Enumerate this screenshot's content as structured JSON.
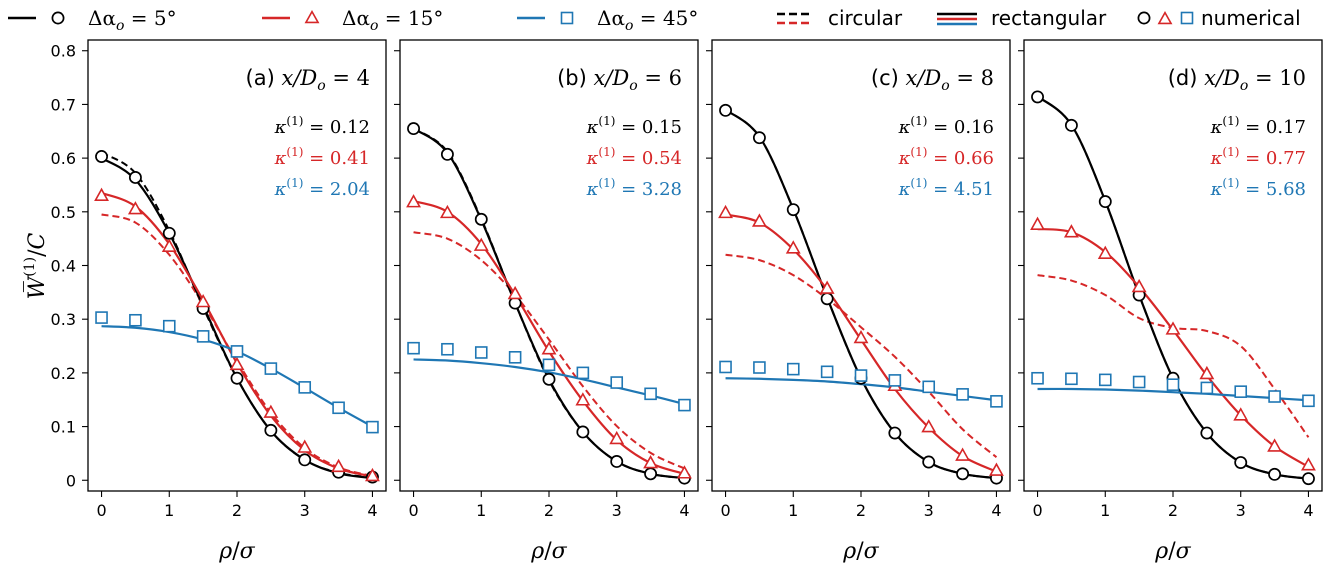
{
  "chart_data": {
    "type": "line",
    "ylabel": "W̅⁽¹⁾/C",
    "xlabel": "ρ/σ",
    "xlim": [
      -0.2,
      4.2
    ],
    "ylim": [
      -0.02,
      0.82
    ],
    "xticks": [
      "0",
      "1",
      "2",
      "3",
      "4"
    ],
    "yticks": [
      "0",
      "0.1",
      "0.2",
      "0.3",
      "0.4",
      "0.5",
      "0.6",
      "0.7",
      "0.8"
    ],
    "grid": false,
    "legend_position": "top",
    "legend": {
      "series": [
        {
          "label": "Δα",
          "sub": "o",
          "value": "= 5°",
          "color": "#000000",
          "marker": "circle"
        },
        {
          "label": "Δα",
          "sub": "o",
          "value": "= 15°",
          "color": "#d62728",
          "marker": "triangle"
        },
        {
          "label": "Δα",
          "sub": "o",
          "value": "= 45°",
          "color": "#1f77b4",
          "marker": "square"
        }
      ],
      "styles": [
        "circular",
        "rectangular",
        "numerical"
      ]
    },
    "colors": {
      "alpha5": "#000000",
      "alpha15": "#d62728",
      "alpha45": "#1f77b4"
    },
    "panels": [
      {
        "letter": "(a)",
        "title_pre": "x/D",
        "title_sub": "o",
        "title_val": "= 4",
        "kappa": [
          "= 0.12",
          "= 0.41",
          "= 2.04"
        ],
        "numerical": [
          [
            0.603,
            0.564,
            0.46,
            0.32,
            0.19,
            0.093,
            0.038,
            0.015,
            0.006
          ],
          [
            0.53,
            0.505,
            0.435,
            0.332,
            0.215,
            0.126,
            0.061,
            0.025,
            0.008
          ],
          [
            0.303,
            0.298,
            0.287,
            0.268,
            0.24,
            0.208,
            0.173,
            0.135,
            0.099
          ]
        ],
        "rectangular": [
          [
            0.6,
            0.56,
            0.46,
            0.325,
            0.19,
            0.092,
            0.038,
            0.013,
            0.004
          ],
          [
            0.535,
            0.51,
            0.44,
            0.335,
            0.218,
            0.12,
            0.056,
            0.022,
            0.007
          ],
          [
            0.287,
            0.284,
            0.276,
            0.262,
            0.24,
            0.208,
            0.172,
            0.135,
            0.1
          ]
        ],
        "circular": [
          [
            0.61,
            0.572,
            0.465,
            0.322,
            0.19,
            0.092,
            0.038,
            0.014,
            0.005
          ],
          [
            0.495,
            0.48,
            0.42,
            0.328,
            0.222,
            0.126,
            0.06,
            0.024,
            0.008
          ]
        ]
      },
      {
        "letter": "(b)",
        "title_pre": "x/D",
        "title_sub": "o",
        "title_val": "= 6",
        "kappa": [
          "= 0.15",
          "= 0.54",
          "= 3.28"
        ],
        "numerical": [
          [
            0.655,
            0.607,
            0.486,
            0.33,
            0.188,
            0.09,
            0.035,
            0.012,
            0.004
          ],
          [
            0.518,
            0.498,
            0.437,
            0.347,
            0.244,
            0.149,
            0.077,
            0.032,
            0.013
          ],
          [
            0.246,
            0.244,
            0.238,
            0.229,
            0.215,
            0.2,
            0.182,
            0.161,
            0.14
          ]
        ],
        "rectangular": [
          [
            0.655,
            0.61,
            0.485,
            0.33,
            0.188,
            0.09,
            0.035,
            0.012,
            0.004
          ],
          [
            0.52,
            0.5,
            0.44,
            0.345,
            0.24,
            0.148,
            0.075,
            0.032,
            0.012
          ],
          [
            0.225,
            0.223,
            0.218,
            0.211,
            0.201,
            0.188,
            0.173,
            0.158,
            0.142
          ]
        ],
        "circular": [
          [
            0.655,
            0.612,
            0.487,
            0.33,
            0.186,
            0.09,
            0.035,
            0.012,
            0.004
          ],
          [
            0.462,
            0.45,
            0.41,
            0.345,
            0.262,
            0.175,
            0.101,
            0.051,
            0.022
          ]
        ]
      },
      {
        "letter": "(c)",
        "title_pre": "x/D",
        "title_sub": "o",
        "title_val": "= 8",
        "kappa": [
          "= 0.16",
          "= 0.66",
          "= 4.51"
        ],
        "numerical": [
          [
            0.689,
            0.638,
            0.504,
            0.338,
            0.19,
            0.088,
            0.034,
            0.012,
            0.004
          ],
          [
            0.498,
            0.482,
            0.432,
            0.357,
            0.265,
            0.176,
            0.099,
            0.046,
            0.018
          ],
          [
            0.211,
            0.21,
            0.207,
            0.202,
            0.195,
            0.186,
            0.174,
            0.16,
            0.147
          ]
        ],
        "rectangular": [
          [
            0.69,
            0.64,
            0.505,
            0.34,
            0.19,
            0.088,
            0.034,
            0.012,
            0.004
          ],
          [
            0.495,
            0.48,
            0.43,
            0.355,
            0.262,
            0.17,
            0.098,
            0.045,
            0.016
          ],
          [
            0.19,
            0.189,
            0.187,
            0.184,
            0.179,
            0.173,
            0.165,
            0.157,
            0.149
          ]
        ],
        "circular": [
          [
            0.69,
            0.64,
            0.505,
            0.34,
            0.19,
            0.088,
            0.034,
            0.012,
            0.004
          ],
          [
            0.42,
            0.41,
            0.382,
            0.338,
            0.285,
            0.23,
            0.165,
            0.095,
            0.043
          ]
        ]
      },
      {
        "letter": "(d)",
        "title_pre": "x/D",
        "title_sub": "o",
        "title_val": "= 10",
        "kappa": [
          "= 0.17",
          "= 0.77",
          "= 5.68"
        ],
        "numerical": [
          [
            0.714,
            0.661,
            0.519,
            0.345,
            0.19,
            0.088,
            0.033,
            0.011,
            0.003
          ],
          [
            0.476,
            0.462,
            0.422,
            0.36,
            0.281,
            0.198,
            0.121,
            0.063,
            0.028
          ],
          [
            0.19,
            0.189,
            0.187,
            0.183,
            0.178,
            0.172,
            0.165,
            0.156,
            0.148
          ]
        ],
        "rectangular": [
          [
            0.715,
            0.662,
            0.52,
            0.345,
            0.19,
            0.088,
            0.033,
            0.011,
            0.003
          ],
          [
            0.468,
            0.462,
            0.425,
            0.36,
            0.28,
            0.195,
            0.121,
            0.063,
            0.025
          ],
          [
            0.17,
            0.17,
            0.169,
            0.167,
            0.164,
            0.161,
            0.157,
            0.153,
            0.149
          ]
        ],
        "circular": [
          [
            0.715,
            0.662,
            0.52,
            0.345,
            0.19,
            0.088,
            0.033,
            0.011,
            0.003
          ],
          [
            0.382,
            0.372,
            0.345,
            0.302,
            0.284,
            0.278,
            0.25,
            0.17,
            0.08
          ]
        ]
      }
    ]
  }
}
